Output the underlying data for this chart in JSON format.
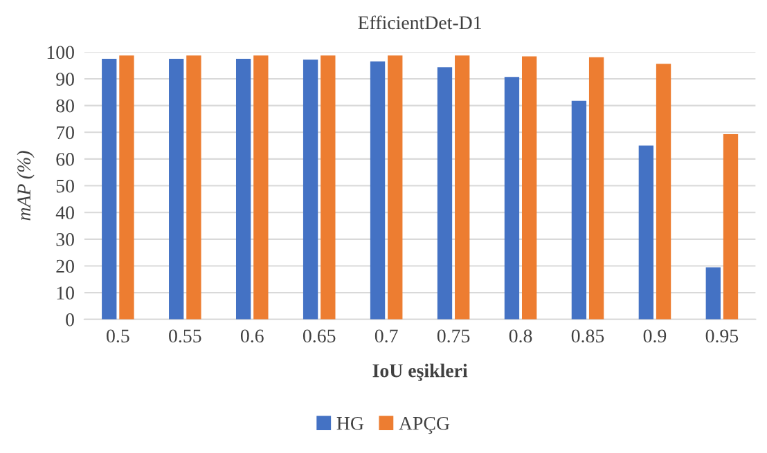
{
  "chart_data": {
    "type": "bar",
    "title": "EfficientDet-D1",
    "xlabel": "IoU eşikleri",
    "ylabel": "mAP (%)",
    "categories": [
      "0.5",
      "0.55",
      "0.6",
      "0.65",
      "0.7",
      "0.75",
      "0.8",
      "0.85",
      "0.9",
      "0.95"
    ],
    "series": [
      {
        "name": "HG",
        "color": "#4472c4",
        "values": [
          97.5,
          97.5,
          97.5,
          97.2,
          96.5,
          94.3,
          90.7,
          81.8,
          65.0,
          19.5
        ]
      },
      {
        "name": "APÇG",
        "color": "#ed7d31",
        "values": [
          98.7,
          98.7,
          98.7,
          98.7,
          98.7,
          98.7,
          98.4,
          98.1,
          95.6,
          69.3
        ]
      }
    ],
    "ylim": [
      0,
      100
    ],
    "yticks": [
      0,
      10,
      20,
      30,
      40,
      50,
      60,
      70,
      80,
      90,
      100
    ],
    "grid": "y",
    "legend": "bottom"
  }
}
